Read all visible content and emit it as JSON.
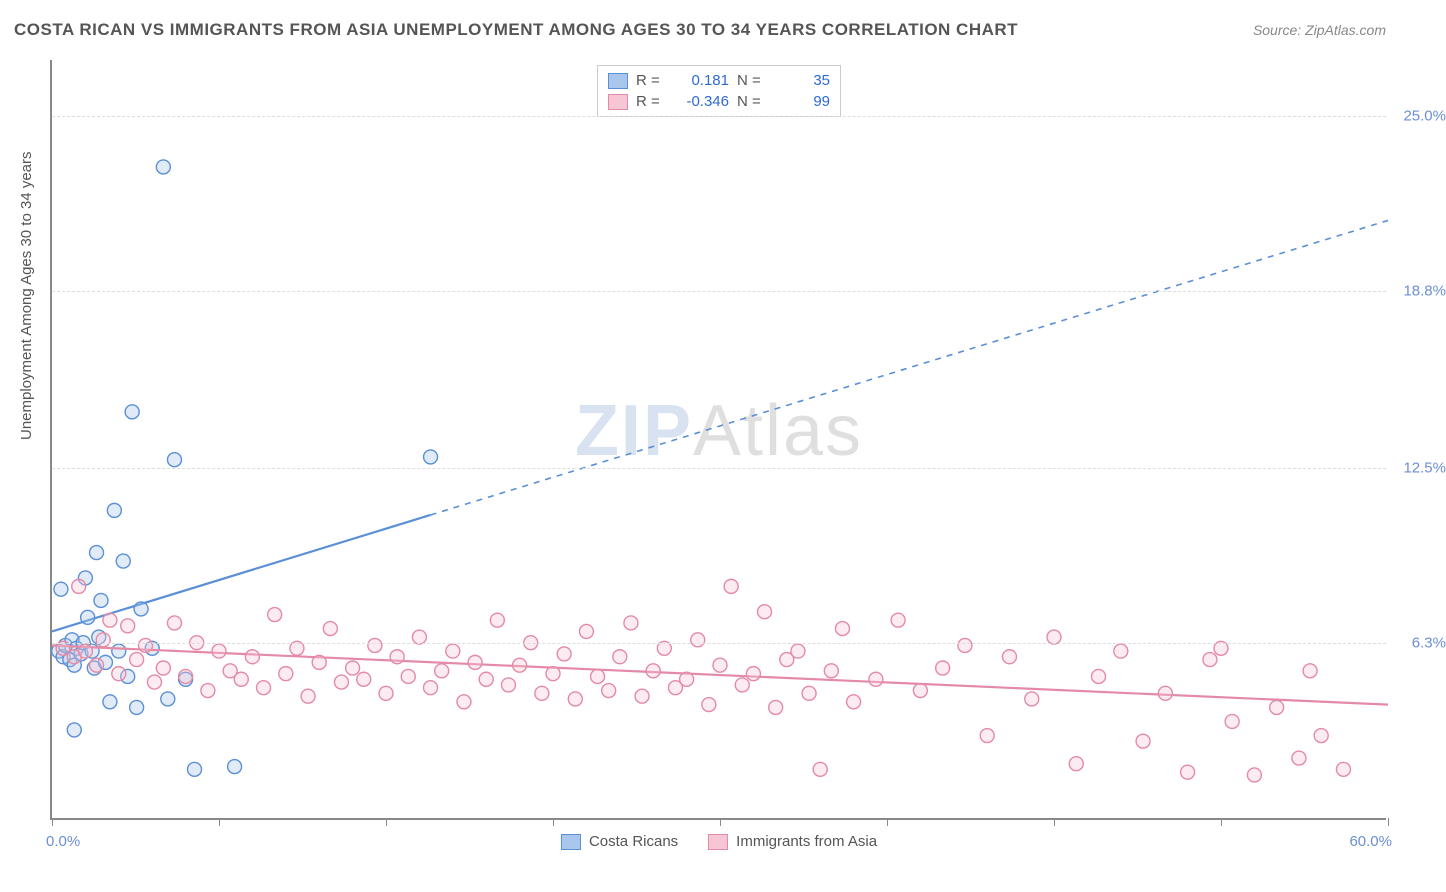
{
  "title": "COSTA RICAN VS IMMIGRANTS FROM ASIA UNEMPLOYMENT AMONG AGES 30 TO 34 YEARS CORRELATION CHART",
  "source": "Source: ZipAtlas.com",
  "y_axis_title": "Unemployment Among Ages 30 to 34 years",
  "watermark_a": "ZIP",
  "watermark_b": "Atlas",
  "chart": {
    "type": "scatter",
    "background_color": "#ffffff",
    "grid_color": "#dddddd",
    "axis_color": "#888888",
    "tick_label_color": "#6b8fd4",
    "x_range": [
      0,
      60
    ],
    "y_range": [
      0,
      27
    ],
    "x_min_label": "0.0%",
    "x_max_label": "60.0%",
    "y_ticks": [
      {
        "v": 6.3,
        "label": "6.3%"
      },
      {
        "v": 12.5,
        "label": "12.5%"
      },
      {
        "v": 18.8,
        "label": "18.8%"
      },
      {
        "v": 25.0,
        "label": "25.0%"
      }
    ],
    "x_tick_positions": [
      0,
      7.5,
      15,
      22.5,
      30,
      37.5,
      45,
      52.5,
      60
    ],
    "marker_radius": 7,
    "marker_stroke_width": 1.4,
    "marker_fill_opacity": 0.35,
    "line_width_solid": 2.2,
    "line_width_dashed": 1.6,
    "dash_pattern": "6,6",
    "series": [
      {
        "key": "costa_ricans",
        "label": "Costa Ricans",
        "color_stroke": "#5b8fd6",
        "color_fill": "#a9c6ec",
        "R": "0.181",
        "N": "35",
        "trend": {
          "x1": 0,
          "y1": 6.7,
          "x2": 60,
          "y2": 21.3,
          "solid_until_x": 17
        },
        "points": [
          [
            0.3,
            6.0
          ],
          [
            0.5,
            5.8
          ],
          [
            0.6,
            6.2
          ],
          [
            0.8,
            5.7
          ],
          [
            0.9,
            6.4
          ],
          [
            1.0,
            5.5
          ],
          [
            1.1,
            6.1
          ],
          [
            1.3,
            5.9
          ],
          [
            1.4,
            6.3
          ],
          [
            1.5,
            8.6
          ],
          [
            1.6,
            7.2
          ],
          [
            1.8,
            6.0
          ],
          [
            1.9,
            5.4
          ],
          [
            2.0,
            9.5
          ],
          [
            2.1,
            6.5
          ],
          [
            2.2,
            7.8
          ],
          [
            2.4,
            5.6
          ],
          [
            2.6,
            4.2
          ],
          [
            2.8,
            11.0
          ],
          [
            3.0,
            6.0
          ],
          [
            3.2,
            9.2
          ],
          [
            3.4,
            5.1
          ],
          [
            3.6,
            14.5
          ],
          [
            3.8,
            4.0
          ],
          [
            4.0,
            7.5
          ],
          [
            4.5,
            6.1
          ],
          [
            5.0,
            23.2
          ],
          [
            5.2,
            4.3
          ],
          [
            5.5,
            12.8
          ],
          [
            6.0,
            5.0
          ],
          [
            6.4,
            1.8
          ],
          [
            8.2,
            1.9
          ],
          [
            0.4,
            8.2
          ],
          [
            1.0,
            3.2
          ],
          [
            17.0,
            12.9
          ]
        ]
      },
      {
        "key": "immigrants_asia",
        "label": "Immigrants from Asia",
        "color_stroke": "#e48aa6",
        "color_fill": "#f6c6d4",
        "R": "-0.346",
        "N": "99",
        "trend": {
          "x1": 0,
          "y1": 6.2,
          "x2": 60,
          "y2": 4.1,
          "solid_until_x": 60
        },
        "points": [
          [
            0.5,
            6.1
          ],
          [
            1.0,
            5.8
          ],
          [
            1.2,
            8.3
          ],
          [
            1.5,
            6.0
          ],
          [
            2.0,
            5.5
          ],
          [
            2.3,
            6.4
          ],
          [
            2.6,
            7.1
          ],
          [
            3.0,
            5.2
          ],
          [
            3.4,
            6.9
          ],
          [
            3.8,
            5.7
          ],
          [
            4.2,
            6.2
          ],
          [
            4.6,
            4.9
          ],
          [
            5.0,
            5.4
          ],
          [
            5.5,
            7.0
          ],
          [
            6.0,
            5.1
          ],
          [
            6.5,
            6.3
          ],
          [
            7.0,
            4.6
          ],
          [
            7.5,
            6.0
          ],
          [
            8.0,
            5.3
          ],
          [
            8.5,
            5.0
          ],
          [
            9.0,
            5.8
          ],
          [
            9.5,
            4.7
          ],
          [
            10.0,
            7.3
          ],
          [
            10.5,
            5.2
          ],
          [
            11.0,
            6.1
          ],
          [
            11.5,
            4.4
          ],
          [
            12.0,
            5.6
          ],
          [
            12.5,
            6.8
          ],
          [
            13.0,
            4.9
          ],
          [
            13.5,
            5.4
          ],
          [
            14.0,
            5.0
          ],
          [
            14.5,
            6.2
          ],
          [
            15.0,
            4.5
          ],
          [
            15.5,
            5.8
          ],
          [
            16.0,
            5.1
          ],
          [
            16.5,
            6.5
          ],
          [
            17.0,
            4.7
          ],
          [
            17.5,
            5.3
          ],
          [
            18.0,
            6.0
          ],
          [
            18.5,
            4.2
          ],
          [
            19.0,
            5.6
          ],
          [
            19.5,
            5.0
          ],
          [
            20.0,
            7.1
          ],
          [
            20.5,
            4.8
          ],
          [
            21.0,
            5.5
          ],
          [
            21.5,
            6.3
          ],
          [
            22.0,
            4.5
          ],
          [
            22.5,
            5.2
          ],
          [
            23.0,
            5.9
          ],
          [
            23.5,
            4.3
          ],
          [
            24.0,
            6.7
          ],
          [
            24.5,
            5.1
          ],
          [
            25.0,
            4.6
          ],
          [
            25.5,
            5.8
          ],
          [
            26.0,
            7.0
          ],
          [
            26.5,
            4.4
          ],
          [
            27.0,
            5.3
          ],
          [
            27.5,
            6.1
          ],
          [
            28.0,
            4.7
          ],
          [
            28.5,
            5.0
          ],
          [
            29.0,
            6.4
          ],
          [
            29.5,
            4.1
          ],
          [
            30.0,
            5.5
          ],
          [
            30.5,
            8.3
          ],
          [
            31.0,
            4.8
          ],
          [
            31.5,
            5.2
          ],
          [
            32.0,
            7.4
          ],
          [
            32.5,
            4.0
          ],
          [
            33.0,
            5.7
          ],
          [
            33.5,
            6.0
          ],
          [
            34.0,
            4.5
          ],
          [
            34.5,
            1.8
          ],
          [
            35.0,
            5.3
          ],
          [
            35.5,
            6.8
          ],
          [
            36.0,
            4.2
          ],
          [
            37.0,
            5.0
          ],
          [
            38.0,
            7.1
          ],
          [
            39.0,
            4.6
          ],
          [
            40.0,
            5.4
          ],
          [
            41.0,
            6.2
          ],
          [
            42.0,
            3.0
          ],
          [
            43.0,
            5.8
          ],
          [
            44.0,
            4.3
          ],
          [
            45.0,
            6.5
          ],
          [
            46.0,
            2.0
          ],
          [
            47.0,
            5.1
          ],
          [
            48.0,
            6.0
          ],
          [
            49.0,
            2.8
          ],
          [
            50.0,
            4.5
          ],
          [
            51.0,
            1.7
          ],
          [
            52.0,
            5.7
          ],
          [
            52.5,
            6.1
          ],
          [
            53.0,
            3.5
          ],
          [
            54.0,
            1.6
          ],
          [
            55.0,
            4.0
          ],
          [
            56.0,
            2.2
          ],
          [
            56.5,
            5.3
          ],
          [
            57.0,
            3.0
          ],
          [
            58.0,
            1.8
          ]
        ]
      }
    ]
  },
  "legend_top_labels": {
    "R": "R =",
    "N": "N ="
  }
}
